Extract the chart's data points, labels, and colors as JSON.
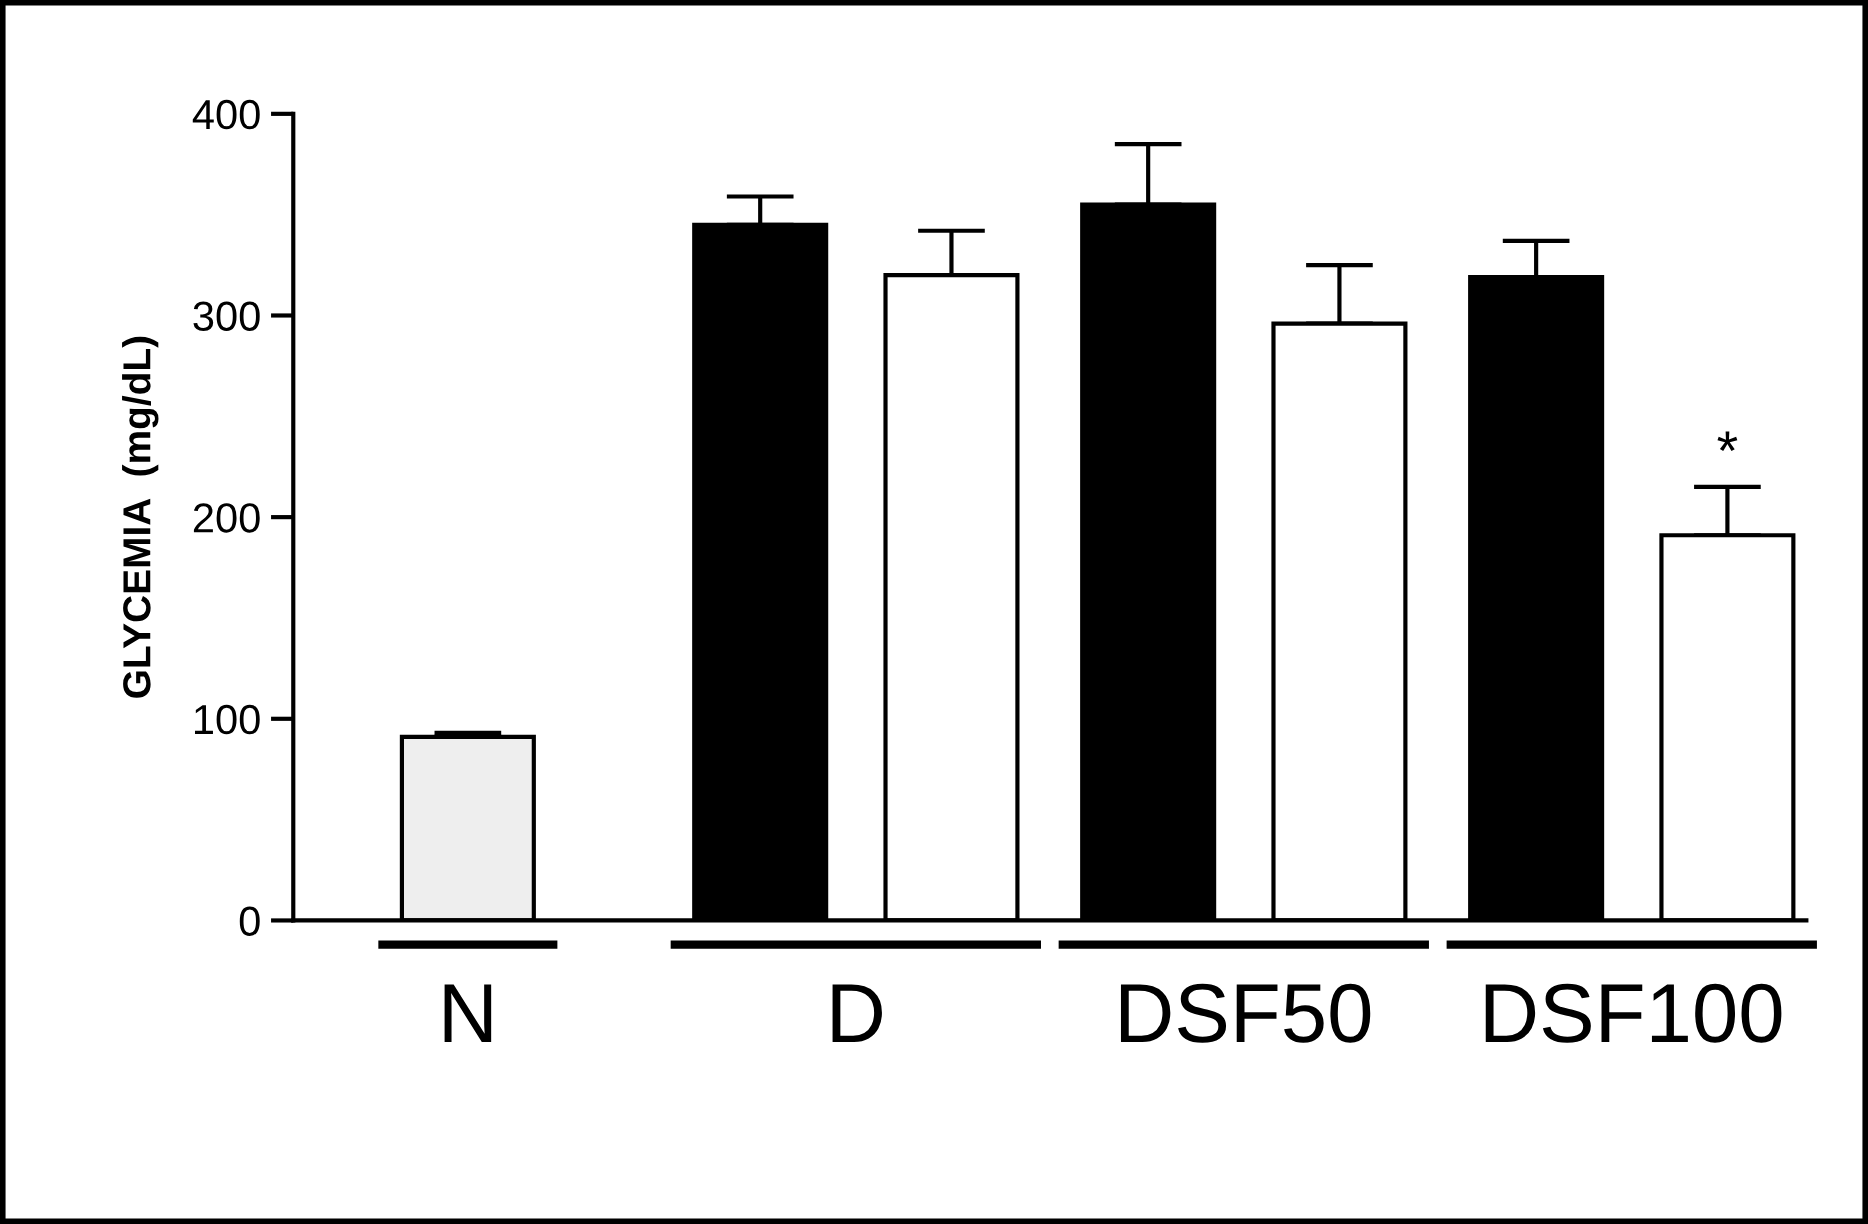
{
  "chart_data": {
    "type": "bar",
    "ylabel": "GLYCEMIA  (mg/dL)",
    "categories": [
      "N",
      "D",
      "DSF50",
      "DSF100"
    ],
    "series": [
      {
        "color": "#eeeeee",
        "values": [
          91,
          null,
          null,
          null
        ],
        "errors": [
          [
            91,
            93
          ],
          null,
          null,
          null
        ]
      },
      {
        "color": "#000000",
        "values": [
          null,
          345,
          355,
          319
        ],
        "errors": [
          null,
          [
            345,
            359
          ],
          [
            355,
            385
          ],
          [
            319,
            337
          ]
        ]
      },
      {
        "color": "#ffffff",
        "values": [
          null,
          320,
          296,
          191
        ],
        "errors": [
          null,
          [
            320,
            342
          ],
          [
            296,
            325
          ],
          [
            191,
            215
          ]
        ]
      }
    ],
    "ylim": [
      0,
      400
    ],
    "yticks": [
      0,
      100,
      200,
      300,
      400
    ],
    "grid": false,
    "legend": false,
    "annotations": [
      "*"
    ]
  }
}
